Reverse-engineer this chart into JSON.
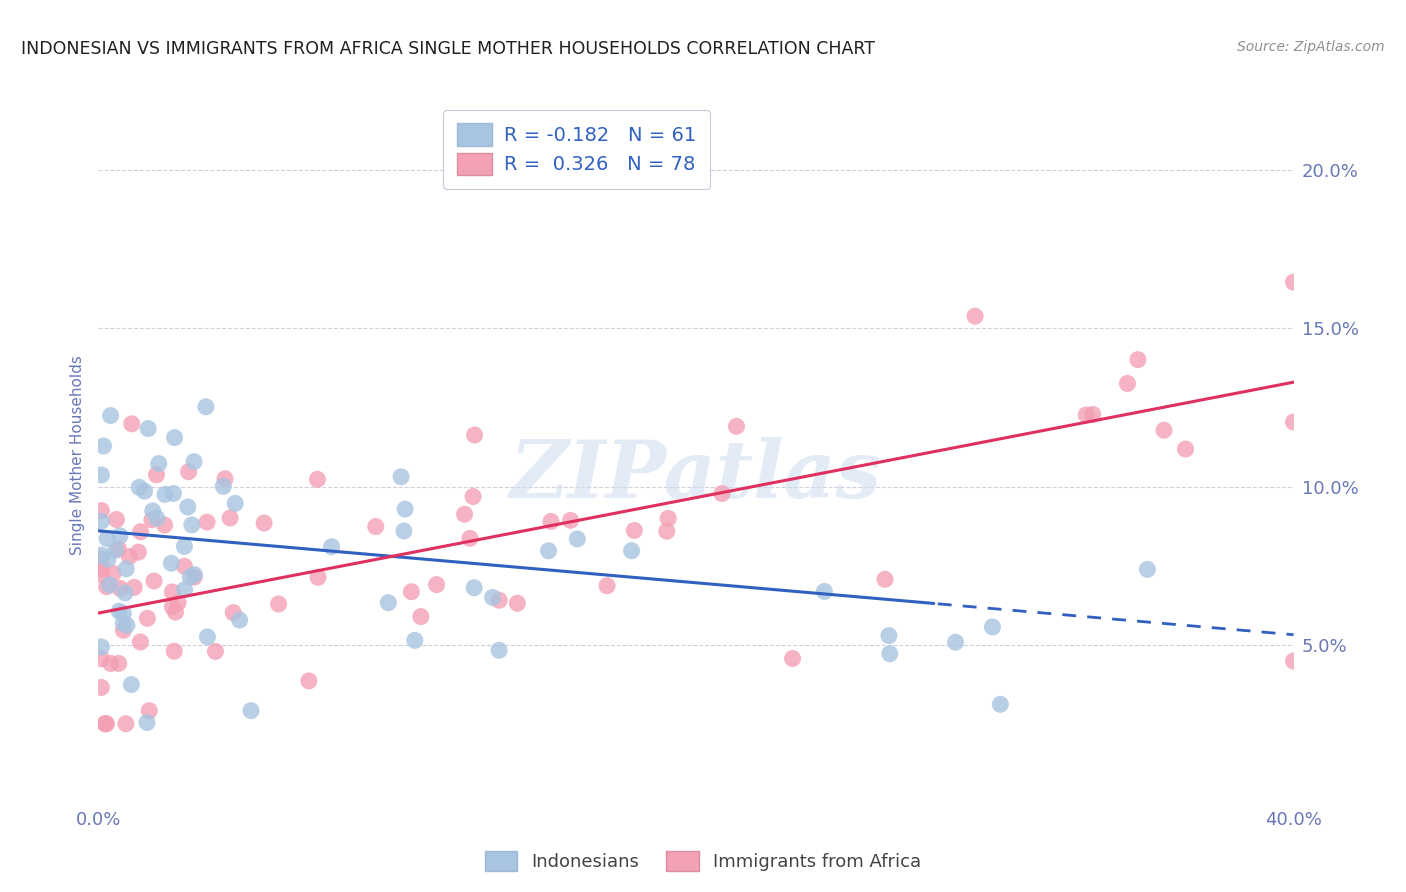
{
  "title": "INDONESIAN VS IMMIGRANTS FROM AFRICA SINGLE MOTHER HOUSEHOLDS CORRELATION CHART",
  "source": "Source: ZipAtlas.com",
  "ylabel": "Single Mother Households",
  "xlim": [
    0.0,
    0.4
  ],
  "ylim": [
    0.0,
    0.22
  ],
  "ytick_vals": [
    0.05,
    0.1,
    0.15,
    0.2
  ],
  "ytick_labels": [
    "5.0%",
    "10.0%",
    "15.0%",
    "20.0%"
  ],
  "xtick_vals": [
    0.0,
    0.1,
    0.2,
    0.3,
    0.4
  ],
  "xtick_labels": [
    "0.0%",
    "",
    "",
    "",
    "40.0%"
  ],
  "r_indonesian": -0.182,
  "n_indonesian": 61,
  "r_africa": 0.326,
  "n_africa": 78,
  "blue_color": "#a8c4e0",
  "pink_color": "#f4a0b5",
  "blue_line_color": "#3060c0",
  "pink_line_color": "#e03060",
  "background_color": "#ffffff",
  "grid_color": "#d0d0e0",
  "watermark_color": "#ccddf0",
  "title_color": "#202020",
  "axis_label_color": "#6878b8",
  "source_color": "#909090",
  "legend_text_color": "#3060c0",
  "indo_line_start_y": 0.086,
  "indo_line_end_y": 0.063,
  "indo_line_solid_end_x": 0.28,
  "indo_line_end_x": 0.4,
  "africa_line_start_y": 0.06,
  "africa_line_end_y": 0.133
}
